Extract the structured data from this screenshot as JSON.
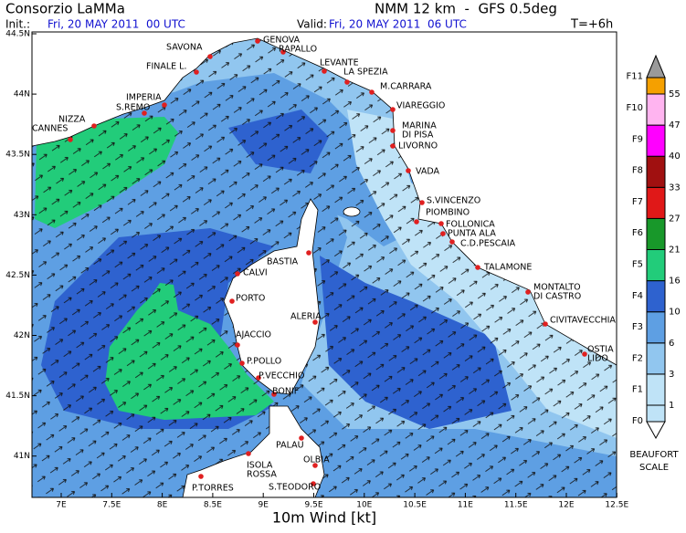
{
  "header": {
    "title": "Consorzio LaMMa",
    "init_label": "Init.:",
    "init": "Fri, 20 MAY 2011  00 UTC",
    "valid_label": "Valid:",
    "valid": "Fri, 20 MAY 2011  06 UTC",
    "model": "NMM 12 km  -  GFS 0.5deg",
    "step": "T=+6h"
  },
  "axes": {
    "lat_ticks": [
      "44.5N",
      "44N",
      "43.5N",
      "43N",
      "42.5N",
      "42N",
      "41.5N",
      "41N"
    ],
    "lon_ticks": [
      "7E",
      "7.5E",
      "8E",
      "8.5E",
      "9E",
      "9.5E",
      "10E",
      "10.5E",
      "11E",
      "11.5E",
      "12E",
      "12.5E"
    ],
    "xlabel": "10m Wind [kt]"
  },
  "cities": [
    [
      "GENOVA"
    ],
    [
      "SAVONA"
    ],
    [
      "RAPALLO"
    ],
    [
      "FINALE L."
    ],
    [
      "LEVANTE"
    ],
    [
      "LA SPEZIA"
    ],
    [
      "IMPERIA"
    ],
    [
      "S.REMO"
    ],
    [
      "M.CARRARA"
    ],
    [
      "VIAREGGIO"
    ],
    [
      "NIZZA"
    ],
    [
      "CANNES"
    ],
    [
      "MARINA",
      "DI PISA"
    ],
    [
      "LIVORNO"
    ],
    [
      "VADA"
    ],
    [
      "S.VINCENZO"
    ],
    [
      "PIOMBINO"
    ],
    [
      "FOLLONICA"
    ],
    [
      "PUNTA ALA"
    ],
    [
      "C.D.PESCAIA"
    ],
    [
      "BASTIA"
    ],
    [
      "TALAMONE"
    ],
    [
      "CALVI"
    ],
    [
      "MONTALTO",
      "DI CASTRO"
    ],
    [
      "PORTO"
    ],
    [
      "ALERIA"
    ],
    [
      "CIVITAVECCHIA"
    ],
    [
      "AJACCIO"
    ],
    [
      "OSTIA",
      "LIDO"
    ],
    [
      "P.POLLO"
    ],
    [
      "P.VECCHIO"
    ],
    [
      "BONIF"
    ],
    [
      "PALAU"
    ],
    [
      "ISOLA",
      "ROSSA"
    ],
    [
      "OLBIA"
    ],
    [
      "P.TORRES"
    ],
    [
      "S.TEODORO"
    ]
  ],
  "legend": {
    "beaufort": [
      "F0",
      "F1",
      "F2",
      "F3",
      "F4",
      "F5",
      "F6",
      "F7",
      "F8",
      "F9",
      "F10",
      "F11"
    ],
    "levels": [
      1,
      3,
      6,
      10,
      16,
      21,
      27,
      33,
      40,
      47,
      55
    ],
    "colors": [
      "#bfe3f7",
      "#bfe3f7",
      "#91c6ef",
      "#5e9fe3",
      "#2e62cf",
      "#22cc7a",
      "#18982a",
      "#e01818",
      "#a01010",
      "#ff00ff",
      "#ffb4f0",
      "#f5a000"
    ],
    "title": [
      "BEAUFORT",
      "SCALE"
    ]
  }
}
